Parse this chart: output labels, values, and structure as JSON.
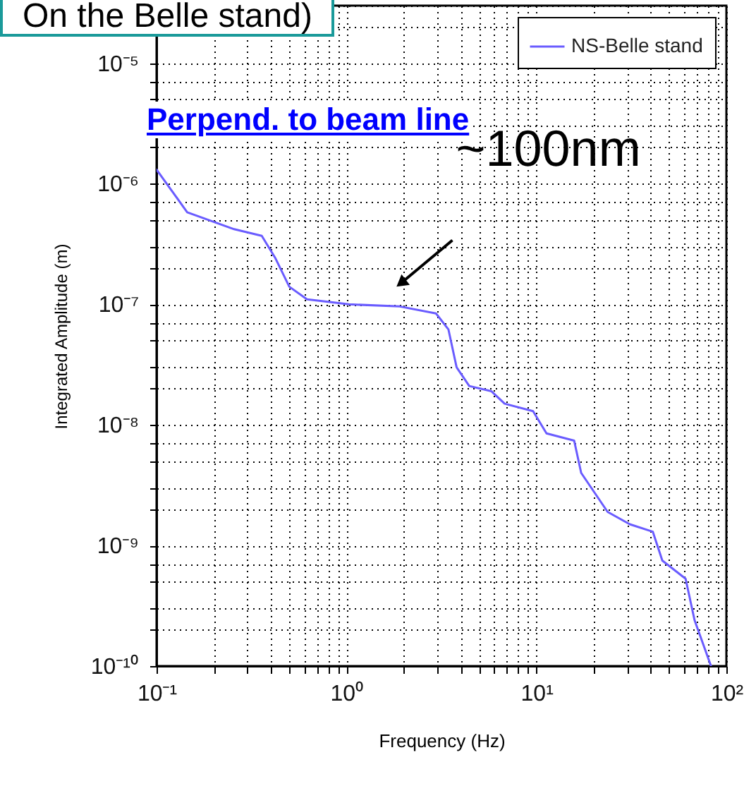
{
  "chart_data": {
    "type": "line",
    "title": "On the Belle stand)",
    "xlabel": "Frequency (Hz)",
    "ylabel": "Integrated Amplitude (m)",
    "annotations": [
      "Perpend. to beam line",
      {
        "text": "~100nm",
        "x": 1.9,
        "y": 1e-07
      }
    ],
    "log": "xy",
    "grid": true,
    "legend": "top right",
    "line_style": "solid",
    "marker": "none",
    "xlim": [
      0.1,
      100
    ],
    "ylim": [
      1e-10,
      3e-05
    ],
    "xticks": [
      {
        "value": 0.1,
        "label": "10⁻¹"
      },
      {
        "value": 0.2,
        "label": null
      },
      {
        "value": 0.3,
        "label": null
      },
      {
        "value": 0.4,
        "label": null
      },
      {
        "value": 0.5,
        "label": null
      },
      {
        "value": 0.6,
        "label": null
      },
      {
        "value": 0.7,
        "label": null
      },
      {
        "value": 0.8,
        "label": null
      },
      {
        "value": 0.9,
        "label": null
      },
      {
        "value": 1,
        "label": "10⁰"
      },
      {
        "value": 2,
        "label": null
      },
      {
        "value": 3,
        "label": null
      },
      {
        "value": 4,
        "label": null
      },
      {
        "value": 5,
        "label": null
      },
      {
        "value": 6,
        "label": null
      },
      {
        "value": 7,
        "label": null
      },
      {
        "value": 8,
        "label": null
      },
      {
        "value": 9,
        "label": null
      },
      {
        "value": 10,
        "label": "10¹"
      },
      {
        "value": 20,
        "label": null
      },
      {
        "value": 30,
        "label": null
      },
      {
        "value": 40,
        "label": null
      },
      {
        "value": 50,
        "label": null
      },
      {
        "value": 60,
        "label": null
      },
      {
        "value": 70,
        "label": null
      },
      {
        "value": 80,
        "label": null
      },
      {
        "value": 90,
        "label": null
      },
      {
        "value": 100,
        "label": "10²"
      }
    ],
    "yticks": [
      {
        "value": 1e-10,
        "label": "10⁻¹⁰"
      },
      {
        "value": 2e-10,
        "label": null
      },
      {
        "value": 3e-10,
        "label": null
      },
      {
        "value": 5e-10,
        "label": null
      },
      {
        "value": 7e-10,
        "label": null
      },
      {
        "value": 1e-09,
        "label": "10⁻⁹"
      },
      {
        "value": 2e-09,
        "label": null
      },
      {
        "value": 3e-09,
        "label": null
      },
      {
        "value": 5e-09,
        "label": null
      },
      {
        "value": 7e-09,
        "label": null
      },
      {
        "value": 1e-08,
        "label": "10⁻⁸"
      },
      {
        "value": 2e-08,
        "label": null
      },
      {
        "value": 3e-08,
        "label": null
      },
      {
        "value": 5e-08,
        "label": null
      },
      {
        "value": 7e-08,
        "label": null
      },
      {
        "value": 1e-07,
        "label": "10⁻⁷"
      },
      {
        "value": 2e-07,
        "label": null
      },
      {
        "value": 3e-07,
        "label": null
      },
      {
        "value": 5e-07,
        "label": null
      },
      {
        "value": 7e-07,
        "label": null
      },
      {
        "value": 1e-06,
        "label": "10⁻⁶"
      },
      {
        "value": 2e-06,
        "label": null
      },
      {
        "value": 3e-06,
        "label": null
      },
      {
        "value": 5e-06,
        "label": null
      },
      {
        "value": 7e-06,
        "label": null
      },
      {
        "value": 1e-05,
        "label": "10⁻⁵"
      },
      {
        "value": 2e-05,
        "label": null
      },
      {
        "value": 3e-05,
        "label": null
      }
    ],
    "x": [
      0.1,
      0.145,
      0.256,
      0.358,
      0.423,
      0.5,
      0.62,
      1.03,
      1.91,
      2.96,
      3.44,
      3.8,
      4.43,
      5.8,
      6.8,
      9.6,
      11.3,
      15.8,
      17.2,
      23.7,
      31,
      41,
      46,
      61,
      68,
      83
    ],
    "series": [
      {
        "name": "NS-Belle stand",
        "color": "#6a5cff",
        "values": [
          1.31e-06,
          5.8e-07,
          4.2e-07,
          3.7e-07,
          2.4e-07,
          1.4e-07,
          1.1e-07,
          1e-07,
          9.6e-08,
          8.4e-08,
          6.2e-08,
          3e-08,
          2.1e-08,
          1.9e-08,
          1.5e-08,
          1.3e-08,
          8.5e-09,
          7.4e-09,
          4e-09,
          1.9e-09,
          1.5e-09,
          1.3e-09,
          7.5e-10,
          5.3e-10,
          2.4e-10,
          1e-10
        ]
      }
    ]
  }
}
